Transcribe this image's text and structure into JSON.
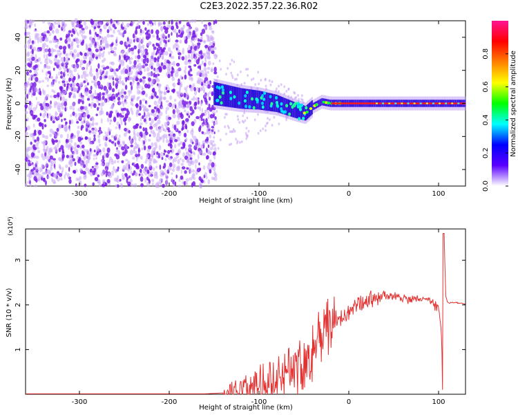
{
  "title": "C2E3.2022.357.22.36.R02",
  "colors": {
    "snr_line": "#e53030",
    "scatter_purple": "#7a1ee6",
    "scatter_light": "#c9a6f5",
    "axis": "#000000"
  },
  "chart_data": [
    {
      "type": "heatmap",
      "name": "spectrogram",
      "xlabel": "Height of straight line (km)",
      "ylabel": "Frequency (Hz)",
      "xlim": [
        -360,
        130
      ],
      "ylim": [
        -50,
        50
      ],
      "x_ticks": [
        -300,
        -200,
        -100,
        0,
        100
      ],
      "y_ticks": [
        -40,
        -20,
        0,
        20,
        40
      ],
      "x_tick_labels": [
        "-300",
        "-200",
        "-100",
        "0",
        "100"
      ],
      "y_tick_labels": [
        "-40",
        "-20",
        "0",
        "20",
        "40"
      ],
      "noise_region_x": [
        -360,
        -148
      ],
      "signal_trace": [
        {
          "x": -150,
          "y": 6
        },
        {
          "x": -120,
          "y": 3
        },
        {
          "x": -100,
          "y": 2
        },
        {
          "x": -80,
          "y": 0
        },
        {
          "x": -60,
          "y": -4
        },
        {
          "x": -48,
          "y": -6
        },
        {
          "x": -40,
          "y": -2
        },
        {
          "x": -30,
          "y": 1
        },
        {
          "x": -20,
          "y": 0
        },
        {
          "x": 0,
          "y": 0
        },
        {
          "x": 50,
          "y": 0
        },
        {
          "x": 100,
          "y": 0
        },
        {
          "x": 130,
          "y": 0
        }
      ],
      "grid": false
    },
    {
      "type": "colorbar",
      "name": "amplitude-scale",
      "label": "Normalized spectral amplitude",
      "range": [
        0,
        1
      ],
      "ticks": [
        0.0,
        0.2,
        0.4,
        0.6,
        0.8
      ],
      "tick_labels": [
        "0.0",
        "0.2",
        "0.4",
        "0.6",
        "0.8"
      ],
      "colormap": [
        "#ffffff",
        "#5a00ff",
        "#0000ff",
        "#00ffff",
        "#00ff00",
        "#ffff00",
        "#ff8000",
        "#ff0000",
        "#ff1493"
      ]
    },
    {
      "type": "line",
      "name": "snr",
      "xlabel": "Height of straight line (km)",
      "ylabel": "SNR (10 * v/v)",
      "y_multiplier": "(x10⁴)",
      "xlim": [
        -360,
        130
      ],
      "ylim": [
        0,
        3.7
      ],
      "x_ticks": [
        -300,
        -200,
        -100,
        0,
        100
      ],
      "y_ticks": [
        1,
        2,
        3
      ],
      "x_tick_labels": [
        "-300",
        "-200",
        "-100",
        "0",
        "100"
      ],
      "y_tick_labels": [
        "1",
        "2",
        "3"
      ],
      "series": [
        {
          "x": [
            -360,
            -300,
            -200,
            -160,
            -140,
            -125,
            -110,
            -100,
            -90,
            -80,
            -70,
            -60,
            -50,
            -40,
            -30,
            -25,
            -20,
            -15,
            -10,
            0,
            10,
            20,
            30,
            40,
            50,
            60,
            70,
            80,
            90,
            95,
            100,
            103,
            105,
            106,
            108,
            110,
            120,
            130
          ],
          "y": [
            0.01,
            0.01,
            0.01,
            0.01,
            0.03,
            0.1,
            0.15,
            0.2,
            0.35,
            0.45,
            0.55,
            0.6,
            0.75,
            1.0,
            1.5,
            1.6,
            1.2,
            1.8,
            1.6,
            1.8,
            2.0,
            2.1,
            2.15,
            2.2,
            2.2,
            2.15,
            2.1,
            2.15,
            2.1,
            2.0,
            1.9,
            1.5,
            0.1,
            3.7,
            2.2,
            2.05,
            2.05,
            2.02
          ]
        }
      ],
      "grid": false
    }
  ]
}
